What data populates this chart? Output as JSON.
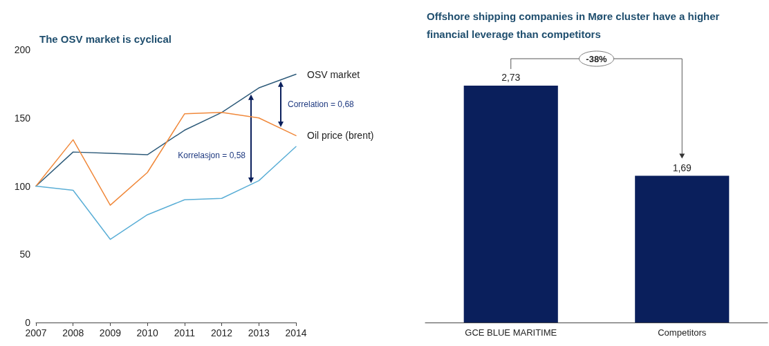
{
  "chart_data": [
    {
      "type": "line",
      "title": "The OSV market is cyclical",
      "x": [
        2007,
        2008,
        2009,
        2010,
        2011,
        2012,
        2013,
        2014
      ],
      "xlim": [
        2007,
        2014
      ],
      "xticks": [
        2007,
        2008,
        2009,
        2010,
        2011,
        2012,
        2013,
        2014
      ],
      "ylim": [
        0,
        200
      ],
      "yticks": [
        0,
        50,
        100,
        150,
        200
      ],
      "series": [
        {
          "name": "OSV market",
          "color": "#2e5b7a",
          "values": [
            100,
            125,
            124,
            123,
            141,
            154,
            172,
            182
          ]
        },
        {
          "name": "Oil price (brent)",
          "color": "#f0883a",
          "values": [
            100,
            134,
            86,
            110,
            153,
            154,
            150,
            137
          ]
        },
        {
          "color": "#5aaed6",
          "values": [
            100,
            97,
            61,
            79,
            90,
            91,
            104,
            129
          ]
        }
      ],
      "annotations": [
        "Korrelasjon = 0,58",
        "Correlation = 0,68"
      ],
      "grid": false,
      "legend": false,
      "marker": "none",
      "line_style": "solid"
    },
    {
      "type": "bar",
      "title": "Offshore shipping companies in Møre cluster have a higher\nfinancial leverage than competitors",
      "categories": [
        "GCE BLUE MARITIME",
        "Competitors"
      ],
      "values": [
        2.73,
        1.69
      ],
      "value_labels": [
        "2,73",
        "1,69"
      ],
      "color": "#0a1f5c",
      "annotations": [
        "-38%"
      ],
      "grid": false,
      "legend": false
    }
  ]
}
